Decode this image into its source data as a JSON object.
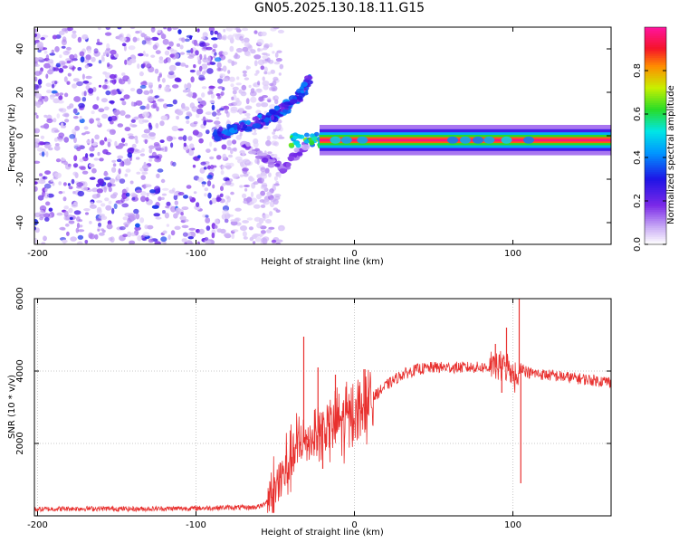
{
  "title": "GN05.2025.130.18.11.G15",
  "colors": {
    "snr_line": "#e8302e",
    "axis": "#000000",
    "grid": "#c8c8c8",
    "scatter": "#7a28e8"
  },
  "chart_data": [
    {
      "type": "heatmap",
      "xlabel": "Height of straight line (km)",
      "ylabel": "Frequency (Hz)",
      "xlim": [
        -202,
        162
      ],
      "ylim": [
        -50,
        50
      ],
      "xticks": [
        -200,
        -100,
        0,
        100
      ],
      "yticks": [
        -40,
        -20,
        0,
        20,
        40
      ],
      "grid": false,
      "colorbar": {
        "label": "Normalized spectral amplitude",
        "range": [
          0,
          1
        ],
        "ticks": [
          0.0,
          0.2,
          0.4,
          0.6,
          0.8
        ],
        "tick_labels": [
          "0.0",
          "0.2",
          "0.4",
          "0.6",
          "0.8"
        ],
        "colormap": "rainbow (white→purple→blue→cyan→green→yellow→red→pink)"
      },
      "features": [
        {
          "name": "background noise",
          "x_range": [
            -202,
            -58
          ],
          "freq_range": [
            -50,
            50
          ],
          "amplitude": 0.05
        },
        {
          "name": "upper chirp",
          "points": [
            [
              -88,
              0
            ],
            [
              -70,
              4
            ],
            [
              -55,
              8
            ],
            [
              -45,
              12
            ],
            [
              -35,
              18
            ],
            [
              -28,
              26
            ]
          ],
          "amplitude": 0.3
        },
        {
          "name": "lower chirp",
          "points": [
            [
              -70,
              -4
            ],
            [
              -55,
              -11
            ],
            [
              -45,
              -15
            ],
            [
              -38,
              -10
            ],
            [
              -30,
              -4
            ]
          ],
          "amplitude": 0.15
        },
        {
          "name": "carrier",
          "x_range": [
            -22,
            162
          ],
          "freq": -2,
          "amplitude": 1.0
        }
      ]
    },
    {
      "type": "line",
      "xlabel": "Height of straight line (km)",
      "ylabel": "SNR (10 * v/v)",
      "xlim": [
        -202,
        162
      ],
      "ylim": [
        0,
        6000
      ],
      "xticks": [
        -200,
        -100,
        0,
        100
      ],
      "yticks": [
        2000,
        4000,
        6000
      ],
      "grid": true,
      "series": [
        {
          "x": [
            -202,
            -180,
            -160,
            -140,
            -120,
            -100,
            -80,
            -65,
            -58,
            -50,
            -45,
            -40,
            -35,
            -30,
            -25,
            -20,
            -15,
            -10,
            -5,
            0,
            5,
            10,
            15,
            20,
            25,
            30,
            40,
            50,
            60,
            70,
            80,
            90,
            95,
            100,
            103,
            105,
            107,
            110,
            120,
            130,
            140,
            150,
            162
          ],
          "y": [
            180,
            200,
            200,
            190,
            200,
            210,
            230,
            230,
            280,
            700,
            1100,
            1600,
            1900,
            2100,
            2250,
            2350,
            2500,
            2600,
            2700,
            2850,
            3000,
            3200,
            3400,
            3600,
            3750,
            3900,
            4050,
            4100,
            4100,
            4100,
            4100,
            4100,
            4150,
            4000,
            3700,
            4150,
            4050,
            3950,
            3900,
            3850,
            3800,
            3750,
            3700
          ]
        }
      ],
      "spikes": [
        {
          "x": -32,
          "y": 4950
        },
        {
          "x": -30,
          "y": 2200
        },
        {
          "x": -23,
          "y": 4100
        },
        {
          "x": -20,
          "y": 1300
        },
        {
          "x": -12,
          "y": 3900
        },
        {
          "x": 6,
          "y": 4050
        },
        {
          "x": 89,
          "y": 4750
        },
        {
          "x": 93,
          "y": 3400
        },
        {
          "x": 96,
          "y": 5200
        },
        {
          "x": 104,
          "y": 6000
        },
        {
          "x": 105,
          "y": 900
        }
      ]
    }
  ]
}
